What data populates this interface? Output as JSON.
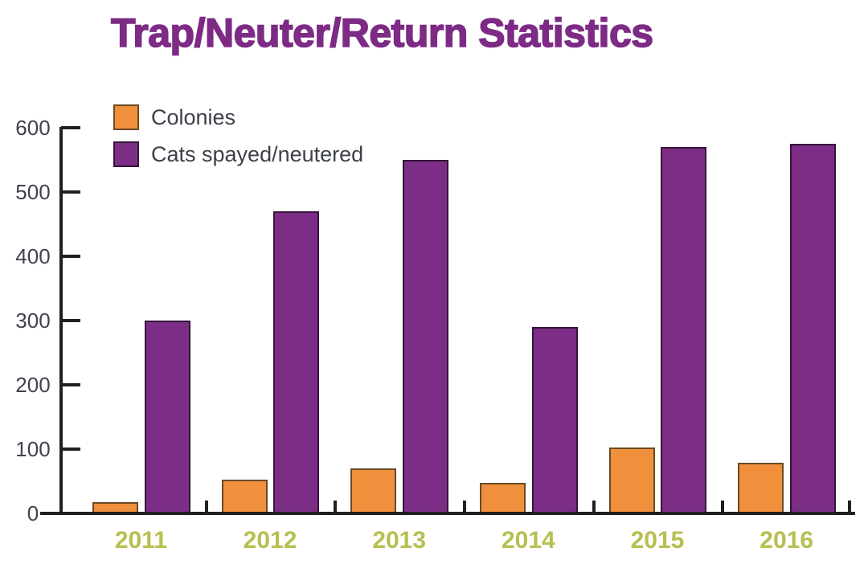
{
  "page": {
    "background": "#ffffff"
  },
  "chart_data": {
    "type": "bar",
    "title": "Trap/Neuter/Return Statistics",
    "categories": [
      "2011",
      "2012",
      "2013",
      "2014",
      "2015",
      "2016"
    ],
    "series": [
      {
        "name": "Colonies",
        "color": "#f0903d",
        "border_color": "#6b4a23",
        "values": [
          18,
          52,
          70,
          48,
          102,
          79
        ]
      },
      {
        "name": "Cats spayed/neutered",
        "color": "#7c2e87",
        "border_color": "#351539",
        "values": [
          300,
          470,
          550,
          290,
          570,
          575
        ]
      }
    ],
    "xlabel": "",
    "ylabel": "",
    "ylim": [
      0,
      600
    ],
    "yticks": [
      0,
      100,
      200,
      300,
      400,
      500,
      600
    ],
    "grid": false,
    "legend_position": "top-left",
    "axis_color": "#231f20",
    "tick_label_color": "#3f434c",
    "year_label_color": "#b7bf51",
    "title_color": "#7d2b85"
  }
}
